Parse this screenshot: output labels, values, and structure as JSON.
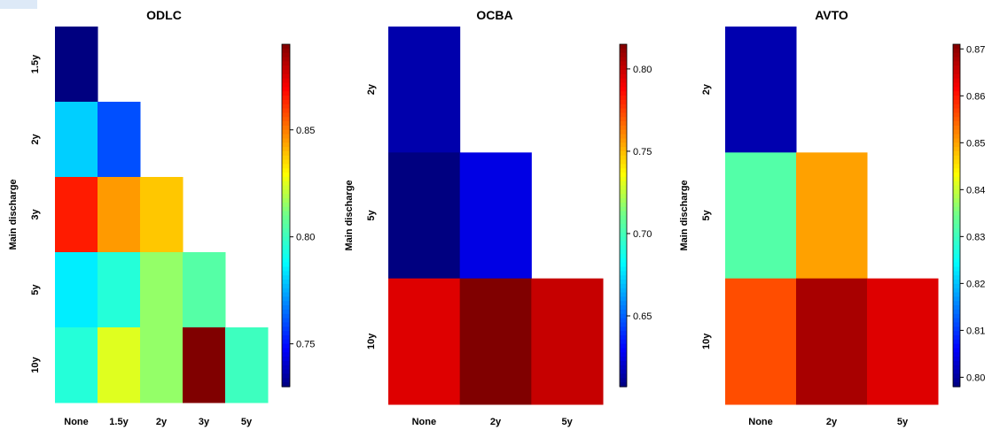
{
  "chart_data": [
    {
      "type": "heatmap",
      "title": "ODLC",
      "ylabel": "Main discharge",
      "xlabel": "",
      "x_categories": [
        "None",
        "1.5y",
        "2y",
        "3y",
        "5y"
      ],
      "y_categories": [
        "1.5y",
        "2y",
        "3y",
        "5y",
        "10y"
      ],
      "values": [
        [
          0.73,
          null,
          null,
          null,
          null
        ],
        [
          0.78,
          0.76,
          null,
          null,
          null
        ],
        [
          0.865,
          0.845,
          0.838,
          null,
          null
        ],
        [
          0.785,
          0.795,
          0.815,
          0.805,
          null
        ],
        [
          0.795,
          0.825,
          0.815,
          0.89,
          0.8
        ]
      ],
      "colorbar": {
        "ticks": [
          0.75,
          0.8,
          0.85
        ],
        "range": [
          0.73,
          0.89
        ]
      },
      "colorscale": "jet"
    },
    {
      "type": "heatmap",
      "title": "OCBA",
      "ylabel": "Main discharge",
      "xlabel": "",
      "x_categories": [
        "None",
        "2y",
        "5y"
      ],
      "y_categories": [
        "2y",
        "5y",
        "10y"
      ],
      "values": [
        [
          0.615,
          null,
          null
        ],
        [
          0.607,
          0.625,
          null
        ],
        [
          0.795,
          0.815,
          0.8
        ]
      ],
      "colorbar": {
        "ticks": [
          0.65,
          0.7,
          0.75,
          0.8
        ],
        "range": [
          0.607,
          0.815
        ]
      },
      "colorscale": "jet"
    },
    {
      "type": "heatmap",
      "title": "AVTO",
      "ylabel": "Main discharge",
      "xlabel": "",
      "x_categories": [
        "None",
        "2y",
        "5y"
      ],
      "y_categories": [
        "2y",
        "5y",
        "10y"
      ],
      "values": [
        [
          0.801,
          null,
          null
        ],
        [
          0.832,
          0.85,
          null
        ],
        [
          0.856,
          0.868,
          0.864
        ]
      ],
      "colorbar": {
        "ticks": [
          0.8,
          0.81,
          0.82,
          0.83,
          0.84,
          0.85,
          0.86,
          0.87
        ],
        "range": [
          0.798,
          0.871
        ]
      },
      "colorscale": "jet"
    }
  ]
}
